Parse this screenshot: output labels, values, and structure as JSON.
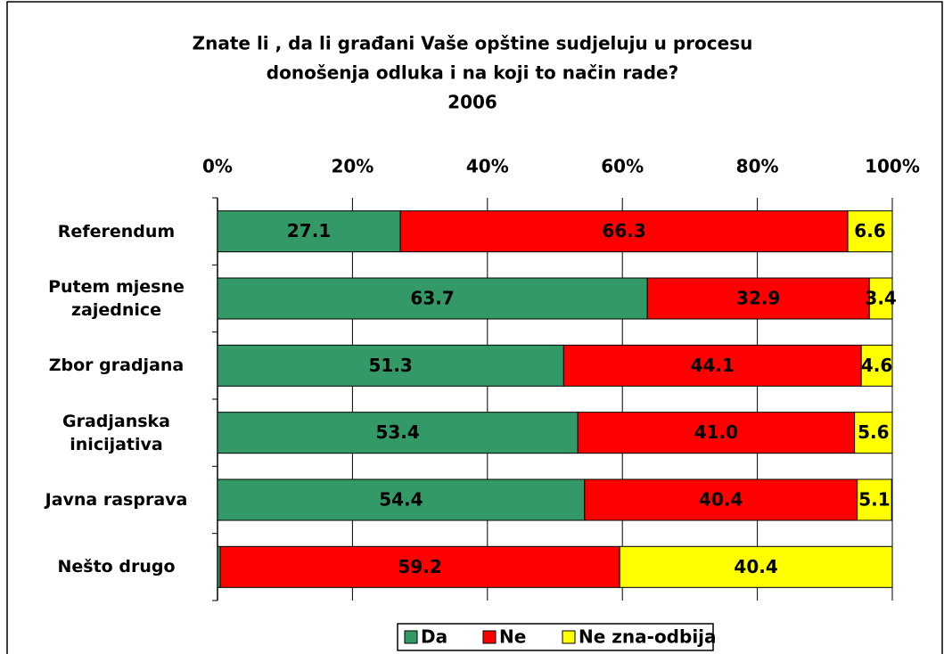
{
  "chart_data": {
    "type": "stacked_bar_horizontal",
    "title": "Znate li , da li građani Vaše opštine sudjeluju u procesu",
    "subtitle": "donošenja odluka i na koji to način rade?",
    "year": "2006",
    "categories": [
      "Referendum",
      "Putem mjesne zajednice",
      "Zbor gradjana",
      "Gradjanska inicijativa",
      "Javna rasprava",
      "Nešto drugo"
    ],
    "series": [
      {
        "name": "Da",
        "color": "#339966",
        "values": [
          27.1,
          63.7,
          51.3,
          53.4,
          54.4,
          0.4
        ]
      },
      {
        "name": "Ne",
        "color": "#ff0000",
        "values": [
          66.3,
          32.9,
          44.1,
          41.0,
          40.4,
          59.2
        ],
        "value_labels": [
          "66.3",
          "32.9",
          "44.1",
          "41.0",
          "40.4",
          "59.2"
        ]
      },
      {
        "name": "Ne zna-odbija",
        "color": "#ffff00",
        "values": [
          6.6,
          3.4,
          4.6,
          5.6,
          5.1,
          40.4
        ]
      }
    ],
    "xlim": [
      0,
      100
    ],
    "xticks": [
      {
        "value": 0,
        "label": "0%"
      },
      {
        "value": 20,
        "label": "20%"
      },
      {
        "value": 40,
        "label": "40%"
      },
      {
        "value": 60,
        "label": "60%"
      },
      {
        "value": 80,
        "label": "80%"
      },
      {
        "value": 100,
        "label": "100%"
      }
    ],
    "grid": true,
    "legend": "bottom"
  }
}
